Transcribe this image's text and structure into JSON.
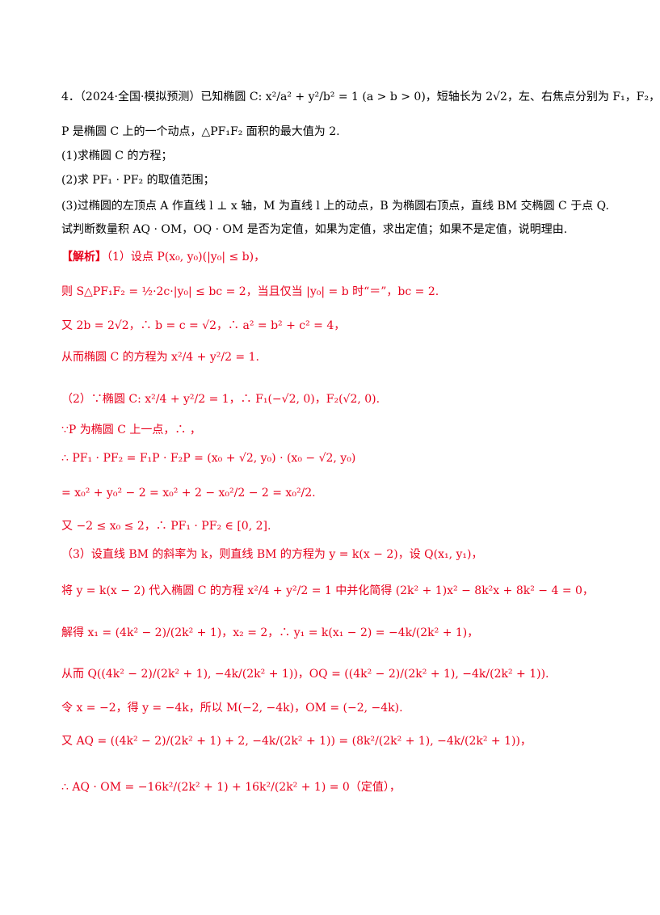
{
  "problem": {
    "line1": "4．（2024·全国·模拟预测）已知椭圆 C: x²/a² + y²/b² = 1 (a > b > 0)，短轴长为 2√2，左、右焦点分别为 F₁，F₂，",
    "line2": "P 是椭圆 C 上的一个动点，△PF₁F₂ 面积的最大值为 2.",
    "q1": "(1)求椭圆 C 的方程；",
    "q2": "(2)求 PF₁ · PF₂ 的取值范围；",
    "q3a": "(3)过椭圆的左顶点 A 作直线 l ⊥ x 轴，M 为直线 l 上的动点，B 为椭圆右顶点，直线 BM 交椭圆 C 于点 Q.",
    "q3b": "试判断数量积 AQ · OM，OQ · OM 是否为定值，如果为定值，求出定值；如果不是定值，说明理由."
  },
  "solution": {
    "tag": "【解析】",
    "s1a": "（1）设点 P(x₀, y₀)(|y₀| ≤ b)，",
    "s1b": "则 S△PF₁F₂ = ½·2c·|y₀| ≤ bc = 2，当且仅当 |y₀| = b 时“＝”，bc = 2.",
    "s1c": "又 2b = 2√2，∴ b = c = √2，∴ a² = b² + c² = 4，",
    "s1d": "从而椭圆 C 的方程为 x²/4 + y²/2 = 1.",
    "s2a": "（2）∵椭圆 C: x²/4 + y²/2 = 1，∴ F₁(−√2, 0)，F₂(√2, 0).",
    "s2b": "∵P 为椭圆 C 上一点，∴ ，",
    "s2c": "∴ PF₁ · PF₂ = F₁P · F₂P = (x₀ + √2, y₀) · (x₀ − √2, y₀)",
    "s2d": "= x₀² + y₀² − 2 = x₀² + 2 − x₀²/2 − 2 = x₀²/2.",
    "s2e": "又 −2 ≤ x₀ ≤ 2，∴ PF₁ · PF₂ ∈ [0, 2].",
    "s3a": "（3）设直线 BM 的斜率为 k，则直线 BM 的方程为 y = k(x − 2)，设 Q(x₁, y₁)，",
    "s3b": "将 y = k(x − 2) 代入椭圆 C 的方程 x²/4 + y²/2 = 1 中并化简得 (2k² + 1)x² − 8k²x + 8k² − 4 = 0，",
    "s3c": "解得 x₁ = (4k² − 2)/(2k² + 1)，x₂ = 2，∴ y₁ = k(x₁ − 2) = −4k/(2k² + 1)，",
    "s3d": "从而 Q((4k² − 2)/(2k² + 1), −4k/(2k² + 1))，OQ = ((4k² − 2)/(2k² + 1), −4k/(2k² + 1)).",
    "s3e": "令 x = −2，得 y = −4k，所以 M(−2, −4k)，OM = (−2, −4k).",
    "s3f": "又 AQ = ((4k² − 2)/(2k² + 1) + 2, −4k/(2k² + 1)) = (8k²/(2k² + 1), −4k/(2k² + 1))，",
    "s3g": "∴ AQ · OM = −16k²/(2k² + 1) + 16k²/(2k² + 1) = 0（定值），"
  }
}
